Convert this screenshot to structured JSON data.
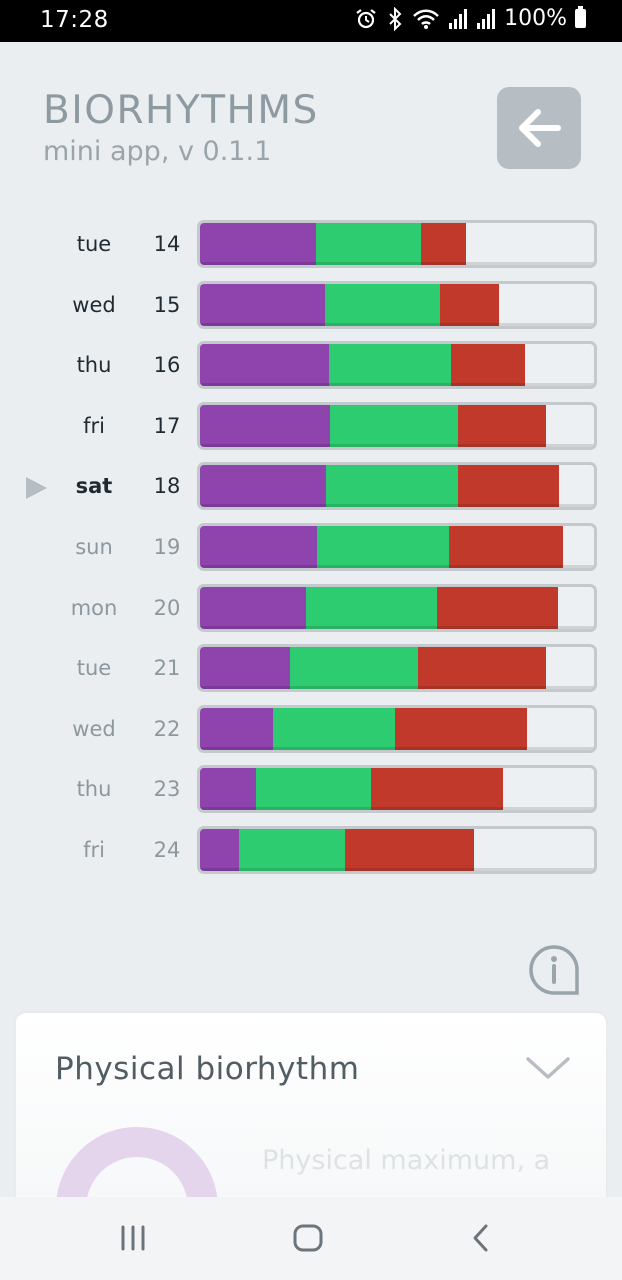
{
  "status_bar": {
    "time": "17:28",
    "battery": "100%",
    "icons": [
      "alarm-icon",
      "bluetooth-icon",
      "wifi-icon",
      "signal-icon",
      "signal-icon",
      "battery-icon"
    ]
  },
  "header": {
    "title": "BIORHYTHMS",
    "subtitle": "mini app, v 0.1.1",
    "back_icon": "arrow-left-icon"
  },
  "legend_colors": {
    "physical": "#8e43ad",
    "emotional": "#2ecc71",
    "intellectual": "#c0392b"
  },
  "rows": [
    {
      "day": "tue",
      "date": "14",
      "physical": 0.295,
      "emotional": 0.265,
      "intellectual": 0.115,
      "state": "past"
    },
    {
      "day": "wed",
      "date": "15",
      "physical": 0.318,
      "emotional": 0.29,
      "intellectual": 0.15,
      "state": "past"
    },
    {
      "day": "thu",
      "date": "16",
      "physical": 0.328,
      "emotional": 0.31,
      "intellectual": 0.188,
      "state": "past"
    },
    {
      "day": "fri",
      "date": "17",
      "physical": 0.33,
      "emotional": 0.325,
      "intellectual": 0.222,
      "state": "past"
    },
    {
      "day": "sat",
      "date": "18",
      "physical": 0.32,
      "emotional": 0.335,
      "intellectual": 0.255,
      "state": "current"
    },
    {
      "day": "sun",
      "date": "19",
      "physical": 0.298,
      "emotional": 0.335,
      "intellectual": 0.288,
      "state": "future"
    },
    {
      "day": "mon",
      "date": "20",
      "physical": 0.268,
      "emotional": 0.333,
      "intellectual": 0.308,
      "state": "future"
    },
    {
      "day": "tue",
      "date": "21",
      "physical": 0.228,
      "emotional": 0.325,
      "intellectual": 0.325,
      "state": "future"
    },
    {
      "day": "wed",
      "date": "22",
      "physical": 0.185,
      "emotional": 0.31,
      "intellectual": 0.335,
      "state": "future"
    },
    {
      "day": "thu",
      "date": "23",
      "physical": 0.143,
      "emotional": 0.29,
      "intellectual": 0.335,
      "state": "future"
    },
    {
      "day": "fri",
      "date": "24",
      "physical": 0.1,
      "emotional": 0.268,
      "intellectual": 0.328,
      "state": "future"
    }
  ],
  "info_icon": "info-circle-icon",
  "panel": {
    "title": "Physical biorhythm",
    "toggle_icon": "chevron-down-icon",
    "text": "Physical maximum, a"
  },
  "nav": {
    "recents_icon": "recents-icon",
    "home_icon": "home-icon",
    "back_icon": "nav-back-icon"
  }
}
